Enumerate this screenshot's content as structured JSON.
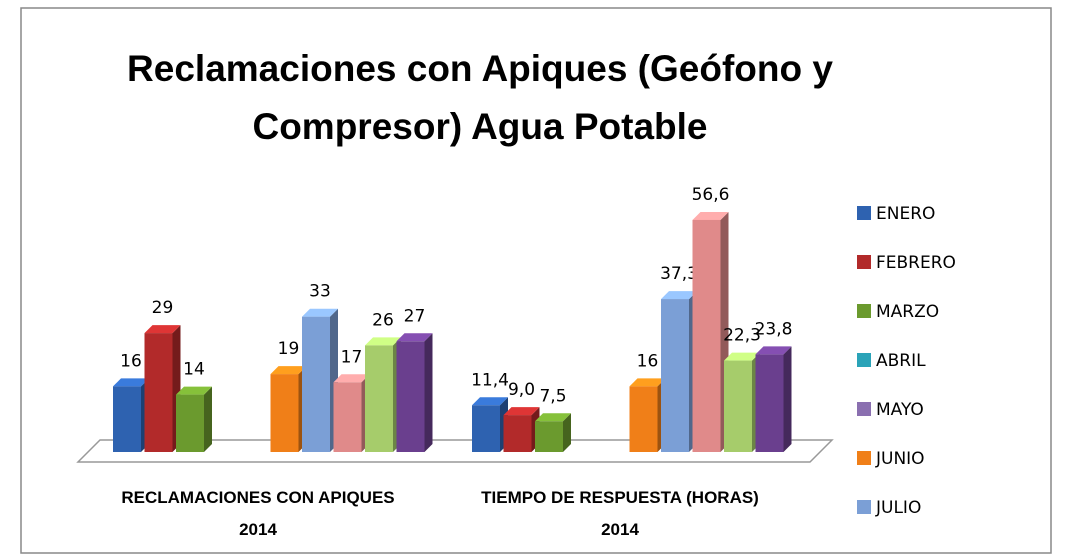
{
  "chart_data": {
    "type": "bar3d",
    "title": "Reclamaciones con Apiques (Geófono y Compresor) Agua Potable",
    "categories": [
      "RECLAMACIONES CON APIQUES 2014",
      "TIEMPO DE RESPUESTA (HORAS) 2014"
    ],
    "legend": "right",
    "series": [
      {
        "name": "ENERO",
        "color": "#2e62b0",
        "values": [
          16,
          11.4
        ],
        "value_labels": [
          "16",
          "11,4"
        ]
      },
      {
        "name": "FEBRERO",
        "color": "#b22a2a",
        "values": [
          29,
          9.0
        ],
        "value_labels": [
          "29",
          "9,0"
        ]
      },
      {
        "name": "MARZO",
        "color": "#6b9a2e",
        "values": [
          14,
          7.5
        ],
        "value_labels": [
          "14",
          "7,5"
        ]
      },
      {
        "name": "ABRIL",
        "color": "#2aa3b8",
        "values": [
          null,
          null
        ]
      },
      {
        "name": "MAYO",
        "color": "#8a6fb0",
        "values": [
          null,
          null
        ]
      },
      {
        "name": "JUNIO",
        "color": "#f07f18",
        "values": [
          19,
          16
        ],
        "value_labels": [
          "19",
          "16"
        ]
      },
      {
        "name": "JULIO",
        "color": "#7b9fd6",
        "values": [
          33,
          37.3
        ],
        "value_labels": [
          "33",
          "37,3"
        ]
      },
      {
        "name": null,
        "color": "#e08a8a",
        "values": [
          17,
          56.6
        ],
        "value_labels": [
          "17",
          "56,6"
        ]
      },
      {
        "name": null,
        "color": "#a6cc6b",
        "values": [
          26,
          22.3
        ],
        "value_labels": [
          "26",
          "22,3"
        ]
      },
      {
        "name": null,
        "color": "#6a3f8e",
        "values": [
          27,
          23.8
        ],
        "value_labels": [
          "27",
          "23,8"
        ]
      }
    ]
  }
}
